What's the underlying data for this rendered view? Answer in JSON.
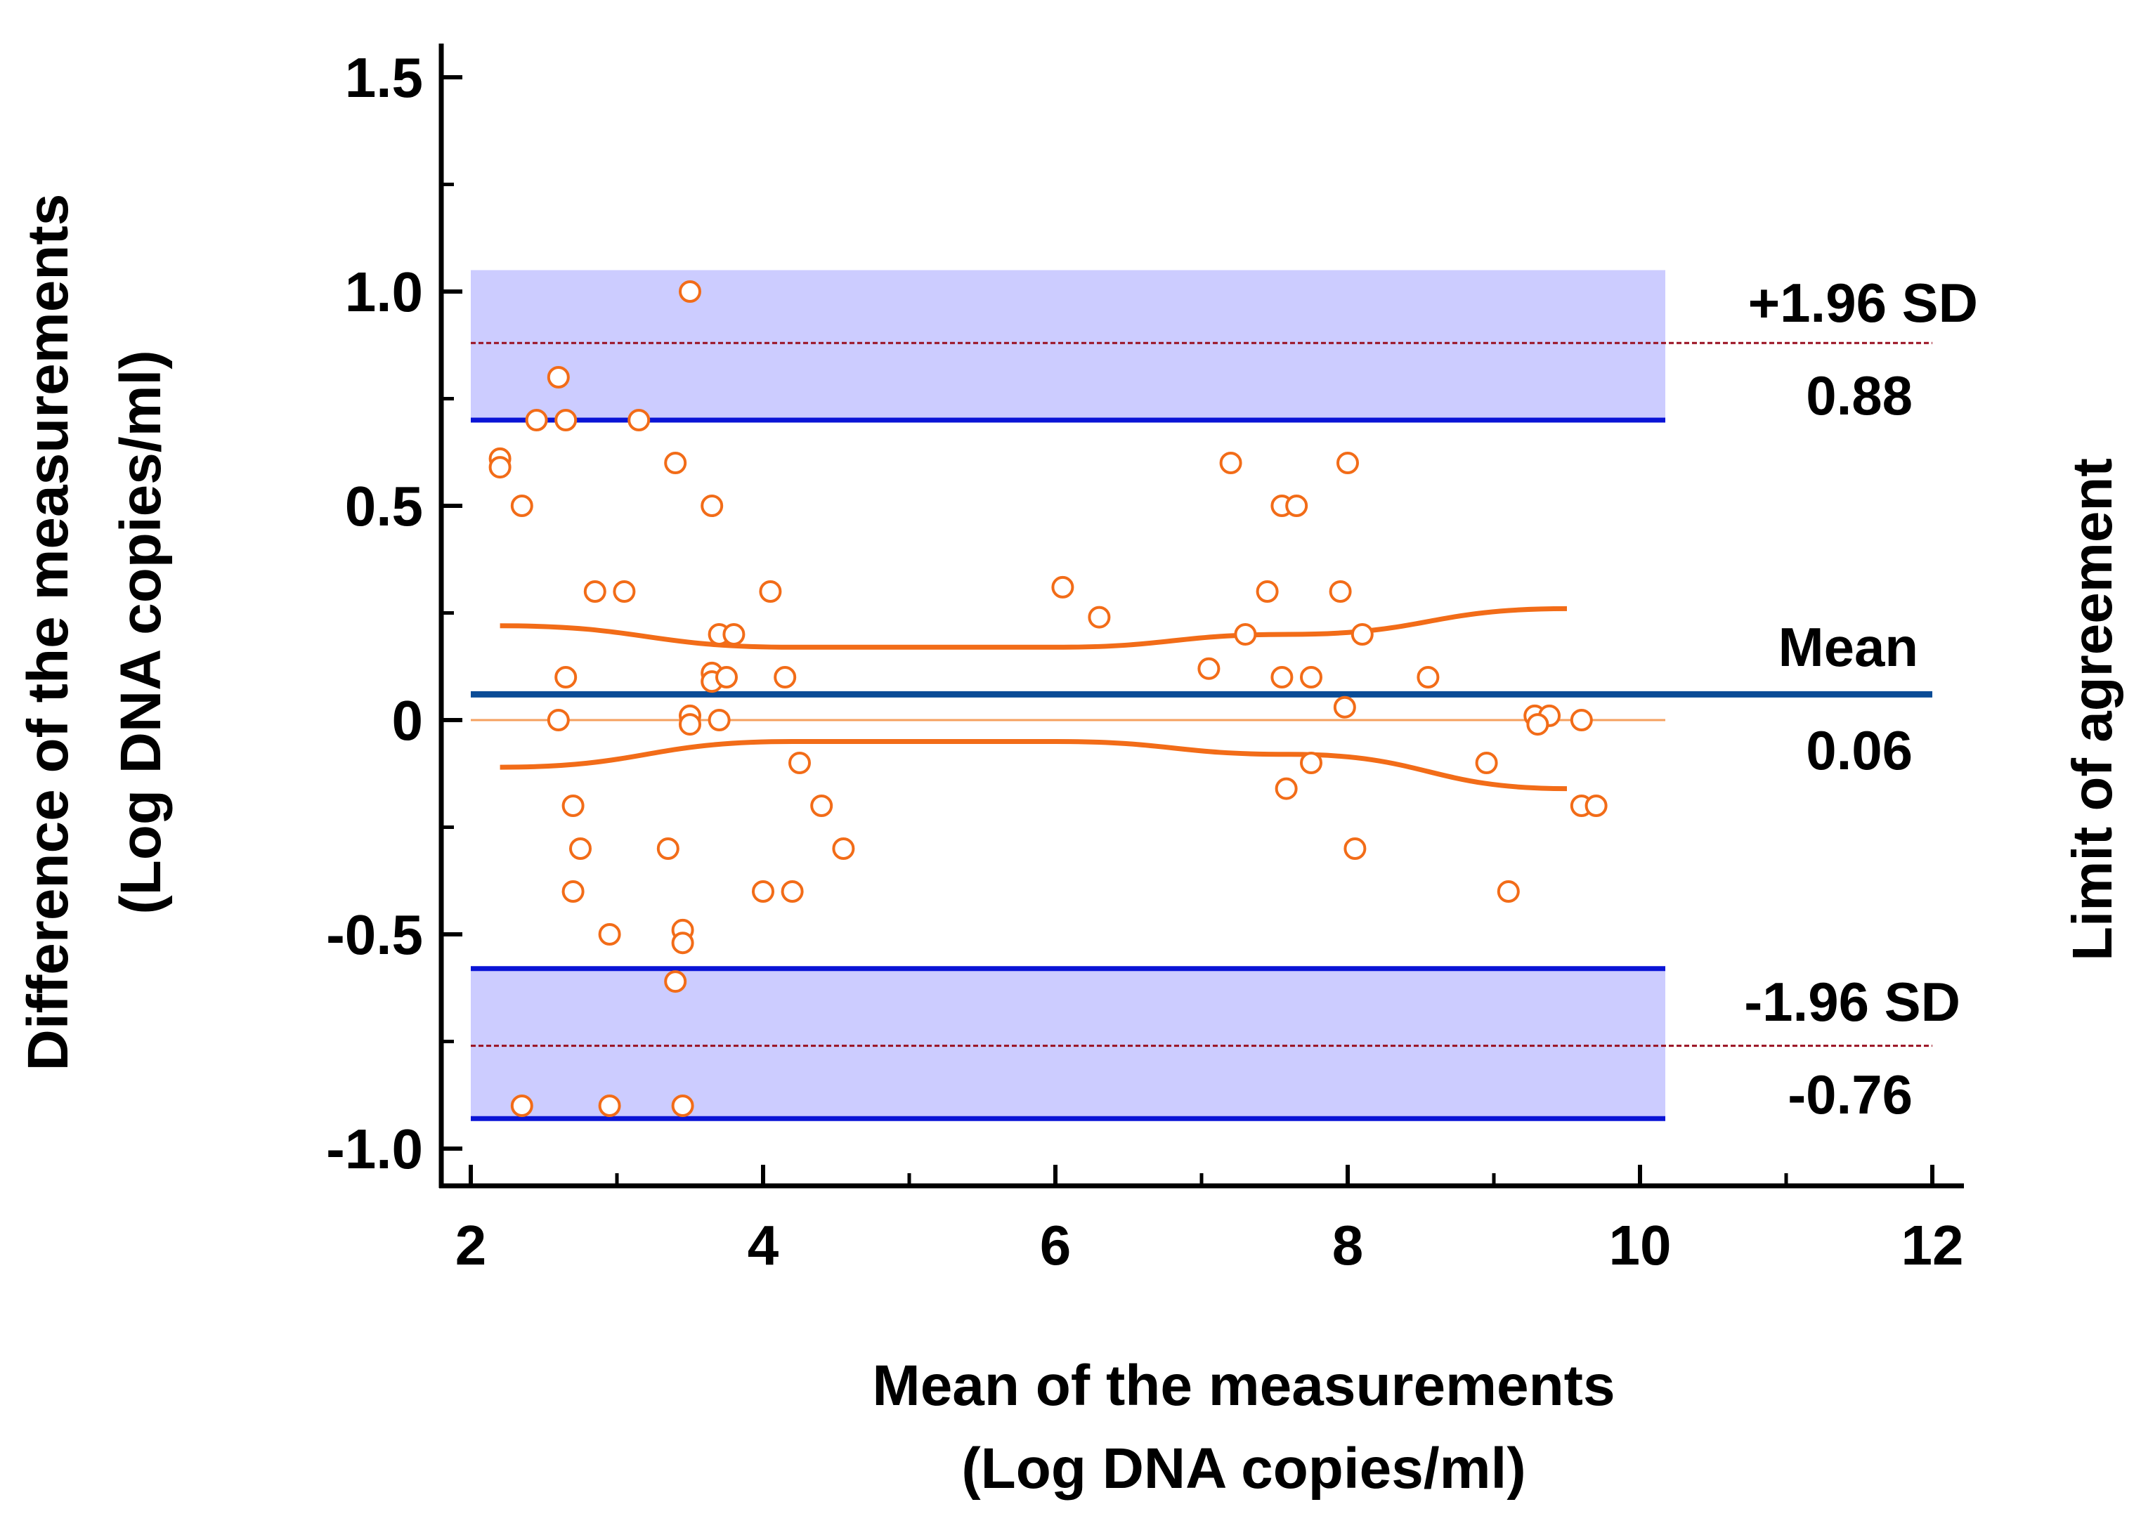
{
  "chart_data": {
    "type": "scatter",
    "subtype": "bland-altman",
    "title": "",
    "xlabel_line1": "Mean of the measurements",
    "xlabel_line2": "(Log DNA copies/ml)",
    "ylabel_line1": "Difference of the measurements",
    "ylabel_line2": "(Log DNA copies/ml)",
    "y2label": "Limit of agreement",
    "xlim": [
      2,
      12
    ],
    "ylim": [
      -1.0,
      1.5
    ],
    "x_ticks": [
      2,
      4,
      6,
      8,
      10,
      12
    ],
    "x_tick_labels": [
      "2",
      "4",
      "6",
      "8",
      "10",
      "12"
    ],
    "y_ticks": [
      -1.0,
      -0.5,
      0,
      0.5,
      1.0,
      1.5
    ],
    "y_tick_labels": [
      "-1.0",
      "-0.5",
      "0",
      "0.5",
      "1.0",
      "1.5"
    ],
    "mean_difference": 0.06,
    "upper_loa": 0.88,
    "lower_loa": -0.76,
    "upper_loa_ci": [
      0.7,
      1.05
    ],
    "lower_loa_ci": [
      -0.93,
      -0.58
    ],
    "annotations": {
      "upper_label": "+1.96 SD",
      "upper_value": "0.88",
      "mean_label": "Mean",
      "mean_value": "0.06",
      "lower_label": "-1.96 SD",
      "lower_value": "-0.76"
    },
    "regression_ci_upper": {
      "x": [
        2.2,
        4.2,
        6.0,
        7.6,
        9.5
      ],
      "y": [
        0.22,
        0.17,
        0.17,
        0.2,
        0.26
      ]
    },
    "regression_ci_lower": {
      "x": [
        2.2,
        4.2,
        6.0,
        7.6,
        9.5
      ],
      "y": [
        -0.11,
        -0.05,
        -0.05,
        -0.08,
        -0.16
      ]
    },
    "points": [
      {
        "x": 3.5,
        "y": 1.0
      },
      {
        "x": 2.6,
        "y": 0.8
      },
      {
        "x": 2.45,
        "y": 0.7
      },
      {
        "x": 2.65,
        "y": 0.7
      },
      {
        "x": 3.15,
        "y": 0.7
      },
      {
        "x": 2.2,
        "y": 0.61
      },
      {
        "x": 2.2,
        "y": 0.59
      },
      {
        "x": 3.4,
        "y": 0.6
      },
      {
        "x": 2.35,
        "y": 0.5
      },
      {
        "x": 3.65,
        "y": 0.5
      },
      {
        "x": 2.85,
        "y": 0.3
      },
      {
        "x": 3.05,
        "y": 0.3
      },
      {
        "x": 4.05,
        "y": 0.3
      },
      {
        "x": 3.7,
        "y": 0.2
      },
      {
        "x": 3.8,
        "y": 0.2
      },
      {
        "x": 2.65,
        "y": 0.1
      },
      {
        "x": 3.65,
        "y": 0.11
      },
      {
        "x": 3.65,
        "y": 0.09
      },
      {
        "x": 3.75,
        "y": 0.1
      },
      {
        "x": 4.15,
        "y": 0.1
      },
      {
        "x": 2.6,
        "y": 0.0
      },
      {
        "x": 3.5,
        "y": 0.01
      },
      {
        "x": 3.5,
        "y": -0.01
      },
      {
        "x": 3.7,
        "y": 0.0
      },
      {
        "x": 4.25,
        "y": -0.1
      },
      {
        "x": 2.7,
        "y": -0.2
      },
      {
        "x": 4.4,
        "y": -0.2
      },
      {
        "x": 2.75,
        "y": -0.3
      },
      {
        "x": 3.35,
        "y": -0.3
      },
      {
        "x": 4.55,
        "y": -0.3
      },
      {
        "x": 2.7,
        "y": -0.4
      },
      {
        "x": 4.0,
        "y": -0.4
      },
      {
        "x": 4.2,
        "y": -0.4
      },
      {
        "x": 2.95,
        "y": -0.5
      },
      {
        "x": 3.45,
        "y": -0.49
      },
      {
        "x": 3.45,
        "y": -0.52
      },
      {
        "x": 3.4,
        "y": -0.61
      },
      {
        "x": 2.35,
        "y": -0.9
      },
      {
        "x": 2.95,
        "y": -0.9
      },
      {
        "x": 3.45,
        "y": -0.9
      },
      {
        "x": 6.05,
        "y": 0.31
      },
      {
        "x": 6.3,
        "y": 0.24
      },
      {
        "x": 7.2,
        "y": 0.6
      },
      {
        "x": 8.0,
        "y": 0.6
      },
      {
        "x": 7.55,
        "y": 0.5
      },
      {
        "x": 7.65,
        "y": 0.5
      },
      {
        "x": 7.45,
        "y": 0.3
      },
      {
        "x": 7.95,
        "y": 0.3
      },
      {
        "x": 7.3,
        "y": 0.2
      },
      {
        "x": 8.1,
        "y": 0.2
      },
      {
        "x": 7.05,
        "y": 0.12
      },
      {
        "x": 7.55,
        "y": 0.1
      },
      {
        "x": 7.75,
        "y": 0.1
      },
      {
        "x": 8.55,
        "y": 0.1
      },
      {
        "x": 7.98,
        "y": 0.03
      },
      {
        "x": 7.75,
        "y": -0.1
      },
      {
        "x": 8.95,
        "y": -0.1
      },
      {
        "x": 7.58,
        "y": -0.16
      },
      {
        "x": 8.05,
        "y": -0.3
      },
      {
        "x": 9.1,
        "y": -0.4
      },
      {
        "x": 9.28,
        "y": 0.01
      },
      {
        "x": 9.38,
        "y": 0.01
      },
      {
        "x": 9.3,
        "y": -0.01
      },
      {
        "x": 9.6,
        "y": 0.0
      },
      {
        "x": 9.6,
        "y": -0.2
      },
      {
        "x": 9.7,
        "y": -0.2
      }
    ]
  },
  "colors": {
    "point": "#f26c18",
    "regression": "#f26c18",
    "zero_line": "#f5a05f",
    "loa_band": "#ccccff",
    "ci_edge": "#0a14d6",
    "mean_line": "#0a4b96",
    "loa_line": "#9a1020",
    "axis": "#000000"
  }
}
